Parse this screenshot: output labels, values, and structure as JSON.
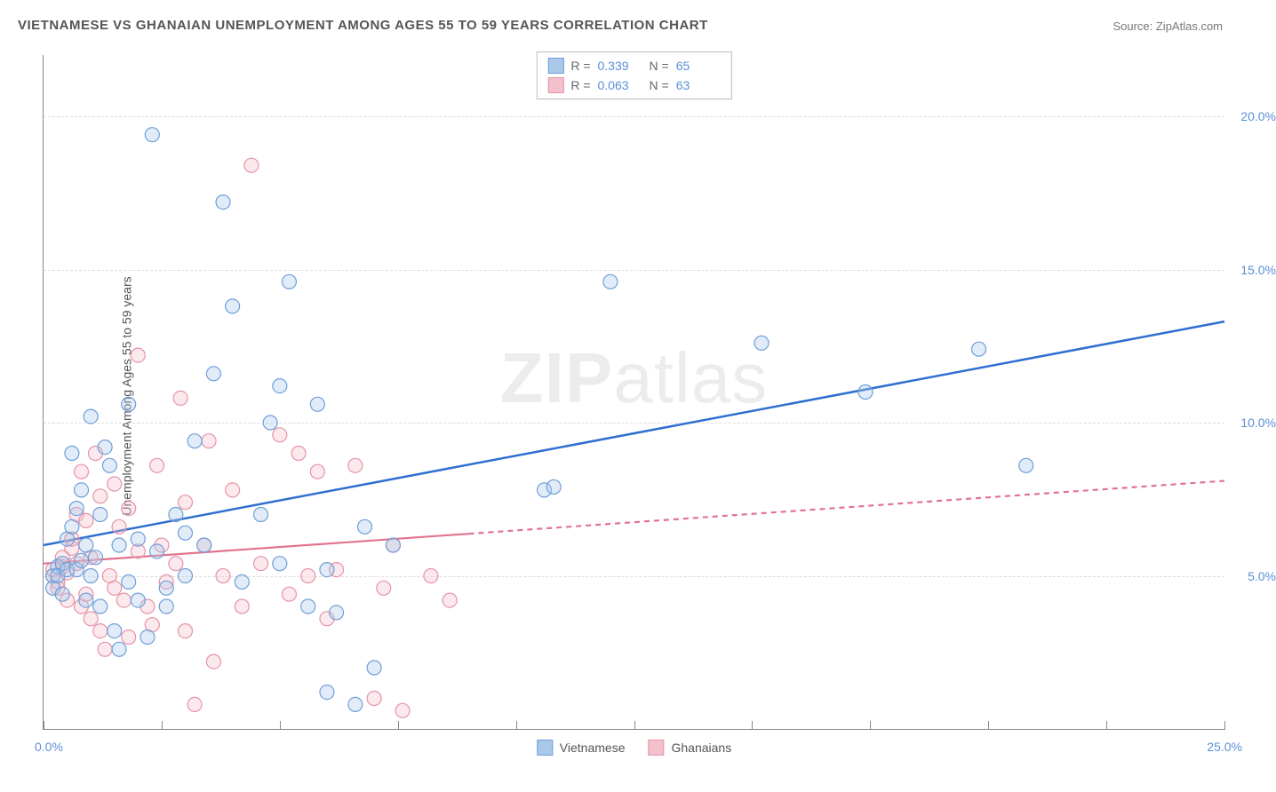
{
  "title": "VIETNAMESE VS GHANAIAN UNEMPLOYMENT AMONG AGES 55 TO 59 YEARS CORRELATION CHART",
  "source": "Source: ZipAtlas.com",
  "ylabel": "Unemployment Among Ages 55 to 59 years",
  "watermark": {
    "zip": "ZIP",
    "atlas": "atlas"
  },
  "chart": {
    "type": "scatter",
    "background_color": "#ffffff",
    "grid_color": "#dddddd",
    "axis_color": "#888888",
    "xlim": [
      0,
      25
    ],
    "ylim": [
      0,
      22
    ],
    "xtick_positions": [
      0,
      2.5,
      5,
      7.5,
      10,
      12.5,
      15,
      17.5,
      20,
      22.5,
      25
    ],
    "x_label_start": "0.0%",
    "x_label_end": "25.0%",
    "ytick_labels": [
      {
        "v": 5,
        "label": "5.0%"
      },
      {
        "v": 10,
        "label": "10.0%"
      },
      {
        "v": 15,
        "label": "15.0%"
      },
      {
        "v": 20,
        "label": "20.0%"
      }
    ],
    "ylabel_color": "#5b8fd6",
    "marker_radius": 8,
    "marker_stroke_width": 1.2,
    "marker_fill_opacity": 0.35,
    "series": [
      {
        "name": "Vietnamese",
        "fill": "#a9c8ea",
        "stroke": "#6f9fd8",
        "line_color": "#2f6fd0",
        "line_width": 2.5,
        "R": "0.339",
        "N": "65",
        "trend": {
          "x1": 0,
          "y1": 6.0,
          "x2": 25,
          "y2": 13.3,
          "dash": null,
          "dash_from_x": null
        },
        "points": [
          [
            0.2,
            5.0
          ],
          [
            0.2,
            4.6
          ],
          [
            0.3,
            5.3
          ],
          [
            0.3,
            5.0
          ],
          [
            0.4,
            4.4
          ],
          [
            0.4,
            5.4
          ],
          [
            0.5,
            5.2
          ],
          [
            0.5,
            6.2
          ],
          [
            0.6,
            6.6
          ],
          [
            0.6,
            9.0
          ],
          [
            0.7,
            7.2
          ],
          [
            0.7,
            5.2
          ],
          [
            0.8,
            5.5
          ],
          [
            0.8,
            7.8
          ],
          [
            0.9,
            6.0
          ],
          [
            0.9,
            4.2
          ],
          [
            1.0,
            10.2
          ],
          [
            1.0,
            5.0
          ],
          [
            1.1,
            5.6
          ],
          [
            1.2,
            7.0
          ],
          [
            1.2,
            4.0
          ],
          [
            1.3,
            9.2
          ],
          [
            1.4,
            8.6
          ],
          [
            1.5,
            3.2
          ],
          [
            1.6,
            6.0
          ],
          [
            1.8,
            4.8
          ],
          [
            1.8,
            10.6
          ],
          [
            2.0,
            6.2
          ],
          [
            2.0,
            4.2
          ],
          [
            2.2,
            3.0
          ],
          [
            2.3,
            19.4
          ],
          [
            2.4,
            5.8
          ],
          [
            2.6,
            4.6
          ],
          [
            2.8,
            7.0
          ],
          [
            3.0,
            6.4
          ],
          [
            3.0,
            5.0
          ],
          [
            3.2,
            9.4
          ],
          [
            3.4,
            6.0
          ],
          [
            3.6,
            11.6
          ],
          [
            3.8,
            17.2
          ],
          [
            4.0,
            13.8
          ],
          [
            4.2,
            4.8
          ],
          [
            4.6,
            7.0
          ],
          [
            4.8,
            10.0
          ],
          [
            5.0,
            5.4
          ],
          [
            5.0,
            11.2
          ],
          [
            5.2,
            14.6
          ],
          [
            5.6,
            4.0
          ],
          [
            5.8,
            10.6
          ],
          [
            6.0,
            5.2
          ],
          [
            6.0,
            1.2
          ],
          [
            6.2,
            3.8
          ],
          [
            6.6,
            0.8
          ],
          [
            6.8,
            6.6
          ],
          [
            7.0,
            2.0
          ],
          [
            7.4,
            6.0
          ],
          [
            10.6,
            7.8
          ],
          [
            10.8,
            7.9
          ],
          [
            12.0,
            14.6
          ],
          [
            15.2,
            12.6
          ],
          [
            17.4,
            11.0
          ],
          [
            19.8,
            12.4
          ],
          [
            20.8,
            8.6
          ],
          [
            1.6,
            2.6
          ],
          [
            2.6,
            4.0
          ]
        ]
      },
      {
        "name": "Ghanaians",
        "fill": "#f3c1cb",
        "stroke": "#e594a7",
        "line_color": "#e2738f",
        "line_width": 2.2,
        "R": "0.063",
        "N": "63",
        "trend": {
          "x1": 0,
          "y1": 5.4,
          "x2": 25,
          "y2": 8.1,
          "dash": "6,5",
          "dash_from_x": 9.0
        },
        "points": [
          [
            0.2,
            5.0
          ],
          [
            0.2,
            5.2
          ],
          [
            0.3,
            4.8
          ],
          [
            0.3,
            4.6
          ],
          [
            0.4,
            5.3
          ],
          [
            0.4,
            5.6
          ],
          [
            0.5,
            5.1
          ],
          [
            0.5,
            4.2
          ],
          [
            0.6,
            5.9
          ],
          [
            0.6,
            6.2
          ],
          [
            0.7,
            7.0
          ],
          [
            0.7,
            5.4
          ],
          [
            0.8,
            4.0
          ],
          [
            0.8,
            8.4
          ],
          [
            0.9,
            4.4
          ],
          [
            0.9,
            6.8
          ],
          [
            1.0,
            3.6
          ],
          [
            1.0,
            5.6
          ],
          [
            1.1,
            9.0
          ],
          [
            1.2,
            3.2
          ],
          [
            1.2,
            7.6
          ],
          [
            1.3,
            2.6
          ],
          [
            1.4,
            5.0
          ],
          [
            1.5,
            4.6
          ],
          [
            1.5,
            8.0
          ],
          [
            1.6,
            6.6
          ],
          [
            1.7,
            4.2
          ],
          [
            1.8,
            3.0
          ],
          [
            1.8,
            7.2
          ],
          [
            2.0,
            12.2
          ],
          [
            2.0,
            5.8
          ],
          [
            2.2,
            4.0
          ],
          [
            2.3,
            3.4
          ],
          [
            2.4,
            8.6
          ],
          [
            2.5,
            6.0
          ],
          [
            2.6,
            4.8
          ],
          [
            2.8,
            5.4
          ],
          [
            2.9,
            10.8
          ],
          [
            3.0,
            3.2
          ],
          [
            3.0,
            7.4
          ],
          [
            3.2,
            0.8
          ],
          [
            3.4,
            6.0
          ],
          [
            3.5,
            9.4
          ],
          [
            3.6,
            2.2
          ],
          [
            3.8,
            5.0
          ],
          [
            4.0,
            7.8
          ],
          [
            4.2,
            4.0
          ],
          [
            4.4,
            18.4
          ],
          [
            4.6,
            5.4
          ],
          [
            5.0,
            9.6
          ],
          [
            5.2,
            4.4
          ],
          [
            5.4,
            9.0
          ],
          [
            5.6,
            5.0
          ],
          [
            5.8,
            8.4
          ],
          [
            6.0,
            3.6
          ],
          [
            6.2,
            5.2
          ],
          [
            6.6,
            8.6
          ],
          [
            7.0,
            1.0
          ],
          [
            7.2,
            4.6
          ],
          [
            7.4,
            6.0
          ],
          [
            7.6,
            0.6
          ],
          [
            8.2,
            5.0
          ],
          [
            8.6,
            4.2
          ]
        ]
      }
    ],
    "legend_top_labels": {
      "R": "R =",
      "N": "N ="
    },
    "legend_bottom": [
      {
        "label": "Vietnamese",
        "fill": "#a9c8ea",
        "stroke": "#6f9fd8"
      },
      {
        "label": "Ghanaians",
        "fill": "#f3c1cb",
        "stroke": "#e594a7"
      }
    ]
  }
}
